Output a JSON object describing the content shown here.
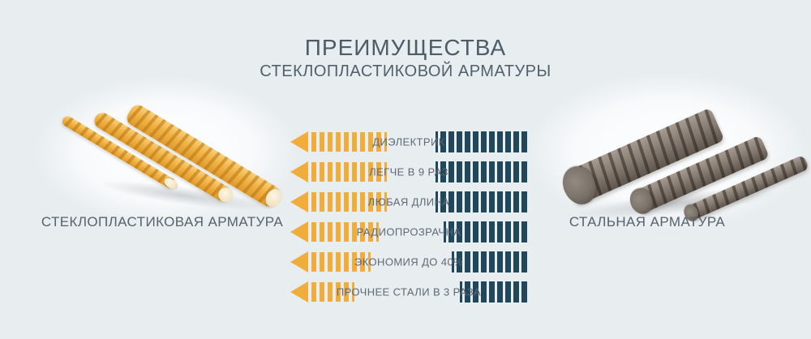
{
  "page": {
    "background": "#E8EDF0"
  },
  "header": {
    "title_line1": "ПРЕИМУЩЕСТВА",
    "title_line2": "СТЕКЛОПЛАСТИКОВОЙ АРМАТУРЫ"
  },
  "left_product": {
    "label": "СТЕКЛОПЛАСТИКОВАЯ АРМАТУРА",
    "image": "fiberglass-rebar-rods"
  },
  "right_product": {
    "label": "СТАЛЬНАЯ АРМАТУРА",
    "image": "steel-rebar-rods"
  },
  "comparison": {
    "accent_color": "#F1AD3C",
    "dark_color": "#20475A",
    "rows": [
      {
        "label": "ДИЭЛЕКТРИК",
        "arrow_stripes": 10,
        "dark_bars": 12
      },
      {
        "label": "ЛЕГЧЕ В 9 РАЗ",
        "arrow_stripes": 10,
        "dark_bars": 12
      },
      {
        "label": "ЛЮБАЯ ДЛИНА",
        "arrow_stripes": 10,
        "dark_bars": 12
      },
      {
        "label": "РАДИОПРОЗРАЧНА",
        "arrow_stripes": 9,
        "dark_bars": 11
      },
      {
        "label": "ЭКОНОМИЯ ДО 40%",
        "arrow_stripes": 8,
        "dark_bars": 10
      },
      {
        "label": "ПРОЧНЕЕ СТАЛИ В 3 РАЗА",
        "arrow_stripes": 6,
        "dark_bars": 9
      }
    ]
  }
}
